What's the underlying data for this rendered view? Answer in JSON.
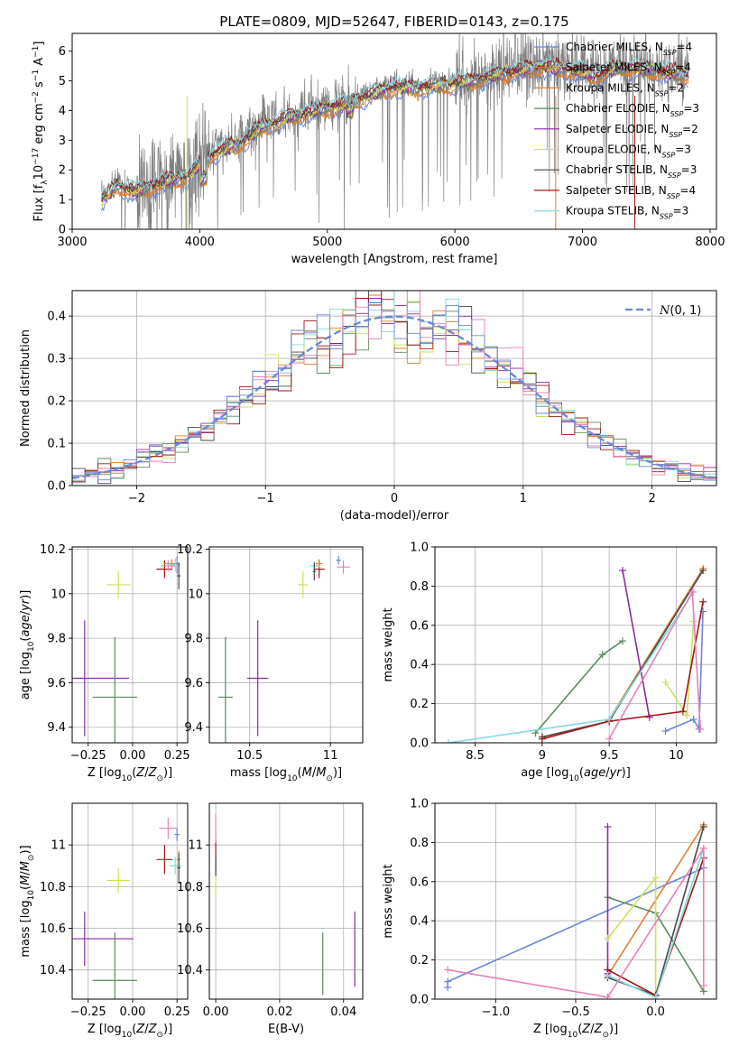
{
  "figure": {
    "title": "PLATE=0809, MJD=52647, FIBERID=0143, z=0.175"
  },
  "colors": {
    "blue": "#6a87d6",
    "orange": "#e07d2c",
    "green": "#5a8a5e",
    "purple": "#8e2aa8",
    "yellowgreen": "#c8e35a",
    "darkgray": "#4a4a4a",
    "darkred": "#a01818",
    "cyan": "#85d8de",
    "pink": "#e77fb8",
    "gray": "#808080"
  },
  "chart_data": [
    {
      "id": "spectrum",
      "type": "line",
      "xlabel": "wavelength [Angstrom, rest frame]",
      "ylabel": "Flux [f$_\\lambda$10$^{-17}$ erg cm$^{-2}$ s$^{-1}$ A$^{-1}$]",
      "ylabel_parts": [
        "Flux [f",
        "λ",
        "10",
        "−17",
        " erg cm",
        "−2",
        " s",
        "−1",
        " A",
        "−1",
        "]"
      ],
      "xlim": [
        3000,
        8050
      ],
      "ylim": [
        0,
        6.6
      ],
      "xticks": [
        3000,
        4000,
        5000,
        6000,
        7000,
        8000
      ],
      "yticks": [
        0,
        1,
        2,
        3,
        4,
        5,
        6
      ],
      "observed": {
        "color": "gray",
        "x_range": [
          3230,
          7830
        ],
        "noise_break_A": [
          3500,
          4050
        ],
        "knots": [
          [
            3230,
            1.1
          ],
          [
            3350,
            1.6
          ],
          [
            3500,
            1.4
          ],
          [
            3700,
            1.7
          ],
          [
            3900,
            1.9
          ],
          [
            4100,
            2.7
          ],
          [
            4300,
            3.0
          ],
          [
            4500,
            3.6
          ],
          [
            4700,
            3.9
          ],
          [
            4900,
            4.1
          ],
          [
            5100,
            4.3
          ],
          [
            5300,
            4.6
          ],
          [
            5500,
            4.9
          ],
          [
            5700,
            4.9
          ],
          [
            5900,
            5.0
          ],
          [
            6100,
            5.1
          ],
          [
            6300,
            5.3
          ],
          [
            6500,
            5.5
          ],
          [
            6700,
            5.6
          ],
          [
            6900,
            5.5
          ],
          [
            7100,
            5.3
          ],
          [
            7300,
            5.6
          ],
          [
            7500,
            5.5
          ],
          [
            7700,
            5.4
          ],
          [
            7830,
            5.3
          ]
        ]
      },
      "series": [
        {
          "name": "Chabrier MILES, N$_{SSP}$=4",
          "label": "Chabrier MILES, N",
          "sub": "SSP",
          "suffix": "=4",
          "color": "blue"
        },
        {
          "name": "Salpeter MILES, N$_{SSP}$=4",
          "label": "Salpeter MILES, N",
          "sub": "SSP",
          "suffix": "=4",
          "color": "orange"
        },
        {
          "name": "Kroupa MILES, N$_{SSP}$=2",
          "label": "Kroupa MILES, N",
          "sub": "SSP",
          "suffix": "=2",
          "color": "orange"
        },
        {
          "name": "Chabrier ELODIE, N$_{SSP}$=3",
          "label": "Chabrier ELODIE, N",
          "sub": "SSP",
          "suffix": "=3",
          "color": "green"
        },
        {
          "name": "Salpeter ELODIE, N$_{SSP}$=2",
          "label": "Salpeter ELODIE, N",
          "sub": "SSP",
          "suffix": "=2",
          "color": "purple"
        },
        {
          "name": "Kroupa ELODIE, N$_{SSP}$=3",
          "label": "Kroupa ELODIE, N",
          "sub": "SSP",
          "suffix": "=3",
          "color": "yellowgreen"
        },
        {
          "name": "Chabrier STELIB, N$_{SSP}$=3",
          "label": "Chabrier STELIB, N",
          "sub": "SSP",
          "suffix": "=3",
          "color": "darkgray"
        },
        {
          "name": "Salpeter STELIB, N$_{SSP}$=4",
          "label": "Salpeter STELIB, N",
          "sub": "SSP",
          "suffix": "=4",
          "color": "darkred"
        },
        {
          "name": "Kroupa STELIB, N$_{SSP}$=3",
          "label": "Kroupa STELIB, N",
          "sub": "SSP",
          "suffix": "=3",
          "color": "cyan"
        }
      ],
      "legend": "top-right",
      "grid": false
    },
    {
      "id": "residuals",
      "type": "histogram",
      "xlabel": "(data-model)/error",
      "ylabel": "Normed distribution",
      "xlim": [
        -2.5,
        2.5
      ],
      "ylim": [
        0,
        0.46
      ],
      "xticks": [
        -2,
        -1,
        0,
        1,
        2
      ],
      "yticks": [
        0.0,
        0.1,
        0.2,
        0.3,
        0.4
      ],
      "bins": {
        "start": -2.5,
        "width": 0.1,
        "count": 50
      },
      "reference": {
        "name": "N(0,1)",
        "label_main": "N",
        "label_args": "(0, 1)",
        "color": "blue",
        "style": "dashed",
        "mean": 0,
        "sigma": 1
      },
      "hist_colors": [
        "green",
        "orange",
        "purple",
        "yellowgreen",
        "darkgray",
        "darkred",
        "cyan",
        "pink",
        "blue"
      ],
      "grid": true,
      "legend": "top-right"
    },
    {
      "id": "age_vs_Z",
      "type": "errorbar",
      "xlabel": "Z [log$_{10}$(Z/Z$_\\odot$)]",
      "ylabel": "age  [log$_{10}$(age/yr)]",
      "xlim": [
        -0.34,
        0.31
      ],
      "ylim": [
        9.33,
        10.21
      ],
      "xticks": [
        -0.25,
        0.0,
        0.25
      ],
      "xticklabels": [
        "−0.25",
        "0.00",
        "0.25"
      ],
      "yticks": [
        9.4,
        9.6,
        9.8,
        10.0,
        10.2
      ],
      "points": [
        {
          "color": "purple",
          "x": -0.27,
          "xerr": 0.5,
          "y": 9.62,
          "yerr": 0.26
        },
        {
          "color": "green",
          "x": -0.1,
          "xerr": 0.25,
          "y": 9.535,
          "yerr": 0.27
        },
        {
          "color": "yellowgreen",
          "x": -0.08,
          "xerr": 0.13,
          "y": 10.04,
          "yerr": 0.06
        },
        {
          "color": "darkred",
          "x": 0.18,
          "xerr": 0.09,
          "y": 10.11,
          "yerr": 0.04
        },
        {
          "color": "orange",
          "x": 0.22,
          "xerr": 0.09,
          "y": 10.135,
          "yerr": 0.02
        },
        {
          "color": "pink",
          "x": 0.2,
          "xerr": 0.08,
          "y": 10.125,
          "yerr": 0.025
        },
        {
          "color": "blue",
          "x": 0.25,
          "xerr": 0.04,
          "y": 10.13,
          "yerr": 0.04
        },
        {
          "color": "cyan",
          "x": 0.24,
          "xerr": 0.06,
          "y": 10.13,
          "yerr": 0.03
        },
        {
          "color": "darkgray",
          "x": 0.26,
          "xerr": 0.02,
          "y": 10.08,
          "yerr": 0.06
        }
      ],
      "grid": true
    },
    {
      "id": "age_vs_mass",
      "type": "errorbar",
      "xlabel": "mass [log$_{10}$(M/M$_\\odot$)]",
      "xlim": [
        10.25,
        11.2
      ],
      "ylim": [
        9.33,
        10.21
      ],
      "xticks": [
        10.5,
        11.0
      ],
      "yticks": [
        9.4,
        9.6,
        9.8,
        10.0,
        10.2
      ],
      "points": [
        {
          "color": "purple",
          "x": 10.55,
          "xerr": 0.13,
          "y": 9.62,
          "yerr": 0.26
        },
        {
          "color": "green",
          "x": 10.35,
          "xerr": 0.09,
          "y": 9.535,
          "yerr": 0.27
        },
        {
          "color": "yellowgreen",
          "x": 10.83,
          "xerr": 0.06,
          "y": 10.04,
          "yerr": 0.06
        },
        {
          "color": "darkred",
          "x": 10.93,
          "xerr": 0.07,
          "y": 10.11,
          "yerr": 0.04
        },
        {
          "color": "orange",
          "x": 10.93,
          "xerr": 0.04,
          "y": 10.135,
          "yerr": 0.02
        },
        {
          "color": "pink",
          "x": 11.08,
          "xerr": 0.08,
          "y": 10.12,
          "yerr": 0.03
        },
        {
          "color": "blue",
          "x": 11.05,
          "xerr": 0.03,
          "y": 10.15,
          "yerr": 0.02
        },
        {
          "color": "cyan",
          "x": 10.9,
          "xerr": 0.06,
          "y": 10.125,
          "yerr": 0.02
        },
        {
          "color": "darkgray",
          "x": 10.9,
          "xerr": 0.02,
          "y": 10.1,
          "yerr": 0.04
        }
      ],
      "grid": true
    },
    {
      "id": "weight_vs_age",
      "type": "line",
      "xlabel": "age  [log$_{10}$(age/yr)]",
      "ylabel": "mass weight",
      "xlim": [
        8.2,
        10.3
      ],
      "ylim": [
        0,
        1.0
      ],
      "xticks": [
        8.5,
        9.0,
        9.5,
        10.0
      ],
      "yticks": [
        0.0,
        0.2,
        0.4,
        0.6,
        0.8,
        1.0
      ],
      "series": [
        {
          "color": "blue",
          "points": [
            [
              9.92,
              0.06
            ],
            [
              10.13,
              0.12
            ],
            [
              10.17,
              0.07
            ],
            [
              10.2,
              0.67
            ]
          ]
        },
        {
          "color": "orange",
          "points": [
            [
              9.5,
              0.12
            ],
            [
              10.2,
              0.89
            ]
          ]
        },
        {
          "color": "green",
          "points": [
            [
              8.95,
              0.05
            ],
            [
              9.45,
              0.45
            ],
            [
              9.6,
              0.52
            ]
          ]
        },
        {
          "color": "purple",
          "points": [
            [
              9.6,
              0.88
            ],
            [
              9.8,
              0.13
            ]
          ]
        },
        {
          "color": "yellowgreen",
          "points": [
            [
              9.92,
              0.31
            ],
            [
              10.08,
              0.14
            ],
            [
              10.13,
              0.62
            ]
          ]
        },
        {
          "color": "darkgray",
          "points": [
            [
              9.0,
              0.03
            ],
            [
              9.5,
              0.11
            ],
            [
              10.2,
              0.88
            ]
          ]
        },
        {
          "color": "darkred",
          "points": [
            [
              9.0,
              0.02
            ],
            [
              9.5,
              0.11
            ],
            [
              10.05,
              0.16
            ],
            [
              10.2,
              0.72
            ]
          ]
        },
        {
          "color": "cyan",
          "points": [
            [
              8.3,
              0.0
            ],
            [
              9.5,
              0.12
            ],
            [
              10.13,
              0.77
            ]
          ]
        },
        {
          "color": "pink",
          "points": [
            [
              9.5,
              0.02
            ],
            [
              10.12,
              0.77
            ],
            [
              10.18,
              0.07
            ]
          ]
        }
      ],
      "grid": true
    },
    {
      "id": "mass_vs_Z",
      "type": "errorbar",
      "xlabel": "Z [log$_{10}$(Z/Z$_\\odot$)]",
      "ylabel": "mass [log$_{10}$(M/M$_\\odot$)]",
      "xlim": [
        -0.34,
        0.31
      ],
      "ylim": [
        10.26,
        11.2
      ],
      "xticks": [
        -0.25,
        0.0,
        0.25
      ],
      "xticklabels": [
        "−0.25",
        "0.00",
        "0.25"
      ],
      "yticks": [
        10.4,
        10.6,
        10.8,
        11.0
      ],
      "points": [
        {
          "color": "purple",
          "x": -0.27,
          "xerr": 0.55,
          "y": 10.55,
          "yerr": 0.13
        },
        {
          "color": "green",
          "x": -0.1,
          "xerr": 0.25,
          "y": 10.35,
          "yerr": 0.23
        },
        {
          "color": "yellowgreen",
          "x": -0.08,
          "xerr": 0.13,
          "y": 10.83,
          "yerr": 0.06
        },
        {
          "color": "darkred",
          "x": 0.18,
          "xerr": 0.09,
          "y": 10.93,
          "yerr": 0.07
        },
        {
          "color": "pink",
          "x": 0.2,
          "xerr": 0.1,
          "y": 11.08,
          "yerr": 0.05
        },
        {
          "color": "blue",
          "x": 0.25,
          "xerr": 0.03,
          "y": 11.05,
          "yerr": 0.03
        },
        {
          "color": "cyan",
          "x": 0.24,
          "xerr": 0.07,
          "y": 10.9,
          "yerr": 0.04
        },
        {
          "color": "orange",
          "x": 0.26,
          "xerr": 0.02,
          "y": 10.93,
          "yerr": 0.04
        },
        {
          "color": "darkgray",
          "x": 0.26,
          "xerr": 0.02,
          "y": 10.89,
          "yerr": 0.07
        }
      ],
      "grid": true
    },
    {
      "id": "mass_vs_ebv",
      "type": "errorbar",
      "xlabel": "E(B-V)",
      "xlim": [
        -0.002,
        0.046
      ],
      "ylim": [
        10.26,
        11.2
      ],
      "xticks": [
        0.0,
        0.02,
        0.04
      ],
      "xticklabels": [
        "0.00",
        "0.02",
        "0.04"
      ],
      "yticks": [
        10.4,
        10.6,
        10.8,
        11.0
      ],
      "points": [
        {
          "color": "purple",
          "x": 0.0435,
          "xerr": 0.0,
          "y": 10.5,
          "yerr": 0.18
        },
        {
          "color": "green",
          "x": 0.0335,
          "xerr": 0.0,
          "y": 10.43,
          "yerr": 0.15
        },
        {
          "color": "yellowgreen",
          "x": 0.0,
          "xerr": 0.0,
          "y": 10.83,
          "yerr": 0.08
        },
        {
          "color": "darkred",
          "x": 0.0,
          "xerr": 0.0,
          "y": 10.95,
          "yerr": 0.08
        },
        {
          "color": "pink",
          "x": 0.0,
          "xerr": 0.0,
          "y": 11.08,
          "yerr": 0.07
        },
        {
          "color": "cyan",
          "x": 0.0,
          "xerr": 0.0,
          "y": 10.9,
          "yerr": 0.05
        },
        {
          "color": "darkgray",
          "x": 0.0,
          "xerr": 0.0,
          "y": 10.9,
          "yerr": 0.05
        }
      ],
      "grid": true
    },
    {
      "id": "weight_vs_Z",
      "type": "line",
      "xlabel": "Z [log$_{10}$(Z/Z$_\\odot$)]",
      "ylabel": "mass weight",
      "xlim": [
        -1.38,
        0.38
      ],
      "ylim": [
        0,
        1.0
      ],
      "xticks": [
        -1.0,
        -0.5,
        0.0
      ],
      "xticklabels": [
        "−1.0",
        "−0.5",
        "0.0"
      ],
      "yticks": [
        0.0,
        0.2,
        0.4,
        0.6,
        0.8,
        1.0
      ],
      "series": [
        {
          "color": "blue",
          "points": [
            [
              -1.3,
              0.06
            ],
            [
              -1.3,
              0.09
            ],
            [
              0.3,
              0.67
            ]
          ]
        },
        {
          "color": "orange",
          "points": [
            [
              -0.3,
              0.12
            ],
            [
              0.3,
              0.89
            ]
          ]
        },
        {
          "color": "green",
          "points": [
            [
              -0.3,
              0.52
            ],
            [
              0.0,
              0.44
            ],
            [
              0.3,
              0.04
            ]
          ]
        },
        {
          "color": "purple",
          "points": [
            [
              -0.3,
              0.88
            ],
            [
              -0.3,
              0.13
            ]
          ]
        },
        {
          "color": "yellowgreen",
          "points": [
            [
              -0.3,
              0.31
            ],
            [
              0.0,
              0.62
            ],
            [
              0.0,
              0.02
            ]
          ]
        },
        {
          "color": "darkgray",
          "points": [
            [
              -0.3,
              0.11
            ],
            [
              0.0,
              0.02
            ],
            [
              0.3,
              0.88
            ]
          ]
        },
        {
          "color": "darkred",
          "points": [
            [
              -0.3,
              0.15
            ],
            [
              0.0,
              0.02
            ],
            [
              0.3,
              0.72
            ]
          ]
        },
        {
          "color": "cyan",
          "points": [
            [
              -0.3,
              0.12
            ],
            [
              0.0,
              0.01
            ],
            [
              0.3,
              0.77
            ]
          ]
        },
        {
          "color": "pink",
          "points": [
            [
              -1.3,
              0.15
            ],
            [
              -0.3,
              0.01
            ],
            [
              0.3,
              0.77
            ],
            [
              0.3,
              0.07
            ]
          ]
        }
      ],
      "grid": true
    }
  ]
}
